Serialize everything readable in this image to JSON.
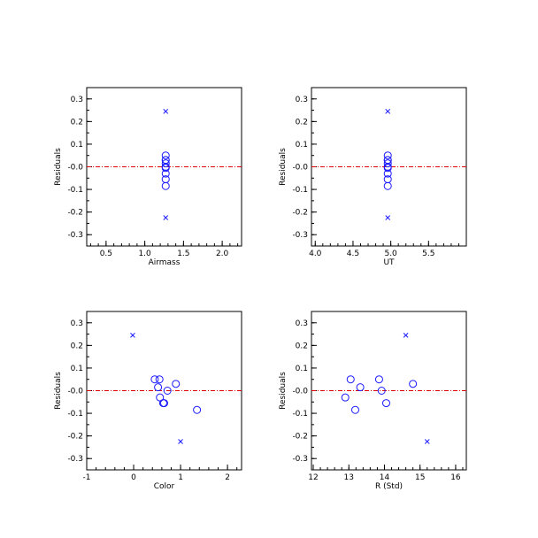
{
  "colors": {
    "points": "#1a1aff",
    "zero_line": "#e00000",
    "axes": "#000000"
  },
  "chart_data": [
    {
      "type": "scatter",
      "xlabel": "Airmass",
      "ylabel": "Residuals",
      "xlim": [
        0.25,
        2.25
      ],
      "ylim": [
        -0.35,
        0.35
      ],
      "xticks": [
        0.5,
        1.0,
        1.5,
        2.0
      ],
      "xtick_labels": [
        "0.5",
        "1.0",
        "1.5",
        "2.0"
      ],
      "yticks": [
        -0.3,
        -0.2,
        -0.1,
        0.0,
        0.1,
        0.2,
        0.3
      ],
      "ytick_labels": [
        "-0.3",
        "-0.2",
        "-0.1",
        "-0.0",
        "0.1",
        "0.2",
        "0.3"
      ],
      "reference_line_y": 0.0,
      "series": [
        {
          "marker": "circle",
          "x": [
            1.27,
            1.27,
            1.27,
            1.27,
            1.27,
            1.27,
            1.27,
            1.27,
            1.27
          ],
          "y": [
            0.05,
            0.03,
            0.015,
            0.0,
            -0.005,
            -0.03,
            -0.055,
            -0.085,
            0.03
          ]
        },
        {
          "marker": "cross",
          "x": [
            1.27,
            1.27
          ],
          "y": [
            0.245,
            -0.225
          ]
        }
      ]
    },
    {
      "type": "scatter",
      "xlabel": "UT",
      "ylabel": "Residuals",
      "xlim": [
        3.95,
        6.0
      ],
      "ylim": [
        -0.35,
        0.35
      ],
      "xticks": [
        4.0,
        4.5,
        5.0,
        5.5
      ],
      "xtick_labels": [
        "4.0",
        "4.5",
        "5.0",
        "5.5"
      ],
      "yticks": [
        -0.3,
        -0.2,
        -0.1,
        0.0,
        0.1,
        0.2,
        0.3
      ],
      "ytick_labels": [
        "-0.3",
        "-0.2",
        "-0.1",
        "-0.0",
        "0.1",
        "0.2",
        "0.3"
      ],
      "reference_line_y": 0.0,
      "series": [
        {
          "marker": "circle",
          "x": [
            4.96,
            4.96,
            4.96,
            4.96,
            4.96,
            4.96,
            4.96,
            4.96,
            4.96
          ],
          "y": [
            0.05,
            0.03,
            0.015,
            0.0,
            -0.005,
            -0.03,
            -0.055,
            -0.085,
            0.03
          ]
        },
        {
          "marker": "cross",
          "x": [
            4.96,
            4.96
          ],
          "y": [
            0.245,
            -0.225
          ]
        }
      ]
    },
    {
      "type": "scatter",
      "xlabel": "Color",
      "ylabel": "Residuals",
      "xlim": [
        -1.0,
        2.3
      ],
      "ylim": [
        -0.35,
        0.35
      ],
      "xticks": [
        -1,
        0,
        1,
        2
      ],
      "xtick_labels": [
        "-1",
        "0",
        "1",
        "2"
      ],
      "yticks": [
        -0.3,
        -0.2,
        -0.1,
        0.0,
        0.1,
        0.2,
        0.3
      ],
      "ytick_labels": [
        "-0.3",
        "-0.2",
        "-0.1",
        "-0.0",
        "0.1",
        "0.2",
        "0.3"
      ],
      "reference_line_y": 0.0,
      "series": [
        {
          "marker": "circle",
          "x": [
            0.45,
            0.55,
            0.52,
            0.56,
            0.65,
            0.9,
            0.72,
            0.63,
            1.35
          ],
          "y": [
            0.05,
            0.05,
            0.015,
            -0.03,
            -0.055,
            0.03,
            0.0,
            -0.055,
            -0.085
          ]
        },
        {
          "marker": "cross",
          "x": [
            -0.02,
            1.0
          ],
          "y": [
            0.245,
            -0.225
          ]
        }
      ]
    },
    {
      "type": "scatter",
      "xlabel": "R (Std)",
      "ylabel": "Residuals",
      "xlim": [
        11.95,
        16.3
      ],
      "ylim": [
        -0.35,
        0.35
      ],
      "xticks": [
        12,
        13,
        14,
        15,
        16
      ],
      "xtick_labels": [
        "12",
        "13",
        "14",
        "15",
        "16"
      ],
      "yticks": [
        -0.3,
        -0.2,
        -0.1,
        0.0,
        0.1,
        0.2,
        0.3
      ],
      "ytick_labels": [
        "-0.3",
        "-0.2",
        "-0.1",
        "-0.0",
        "0.1",
        "0.2",
        "0.3"
      ],
      "reference_line_y": 0.0,
      "series": [
        {
          "marker": "circle",
          "x": [
            12.9,
            13.05,
            13.18,
            13.32,
            13.85,
            13.92,
            14.05,
            14.8
          ],
          "y": [
            -0.03,
            0.05,
            -0.085,
            0.015,
            0.05,
            0.0,
            -0.055,
            0.03
          ]
        },
        {
          "marker": "cross",
          "x": [
            14.6,
            15.2
          ],
          "y": [
            0.245,
            -0.225
          ]
        }
      ]
    }
  ]
}
